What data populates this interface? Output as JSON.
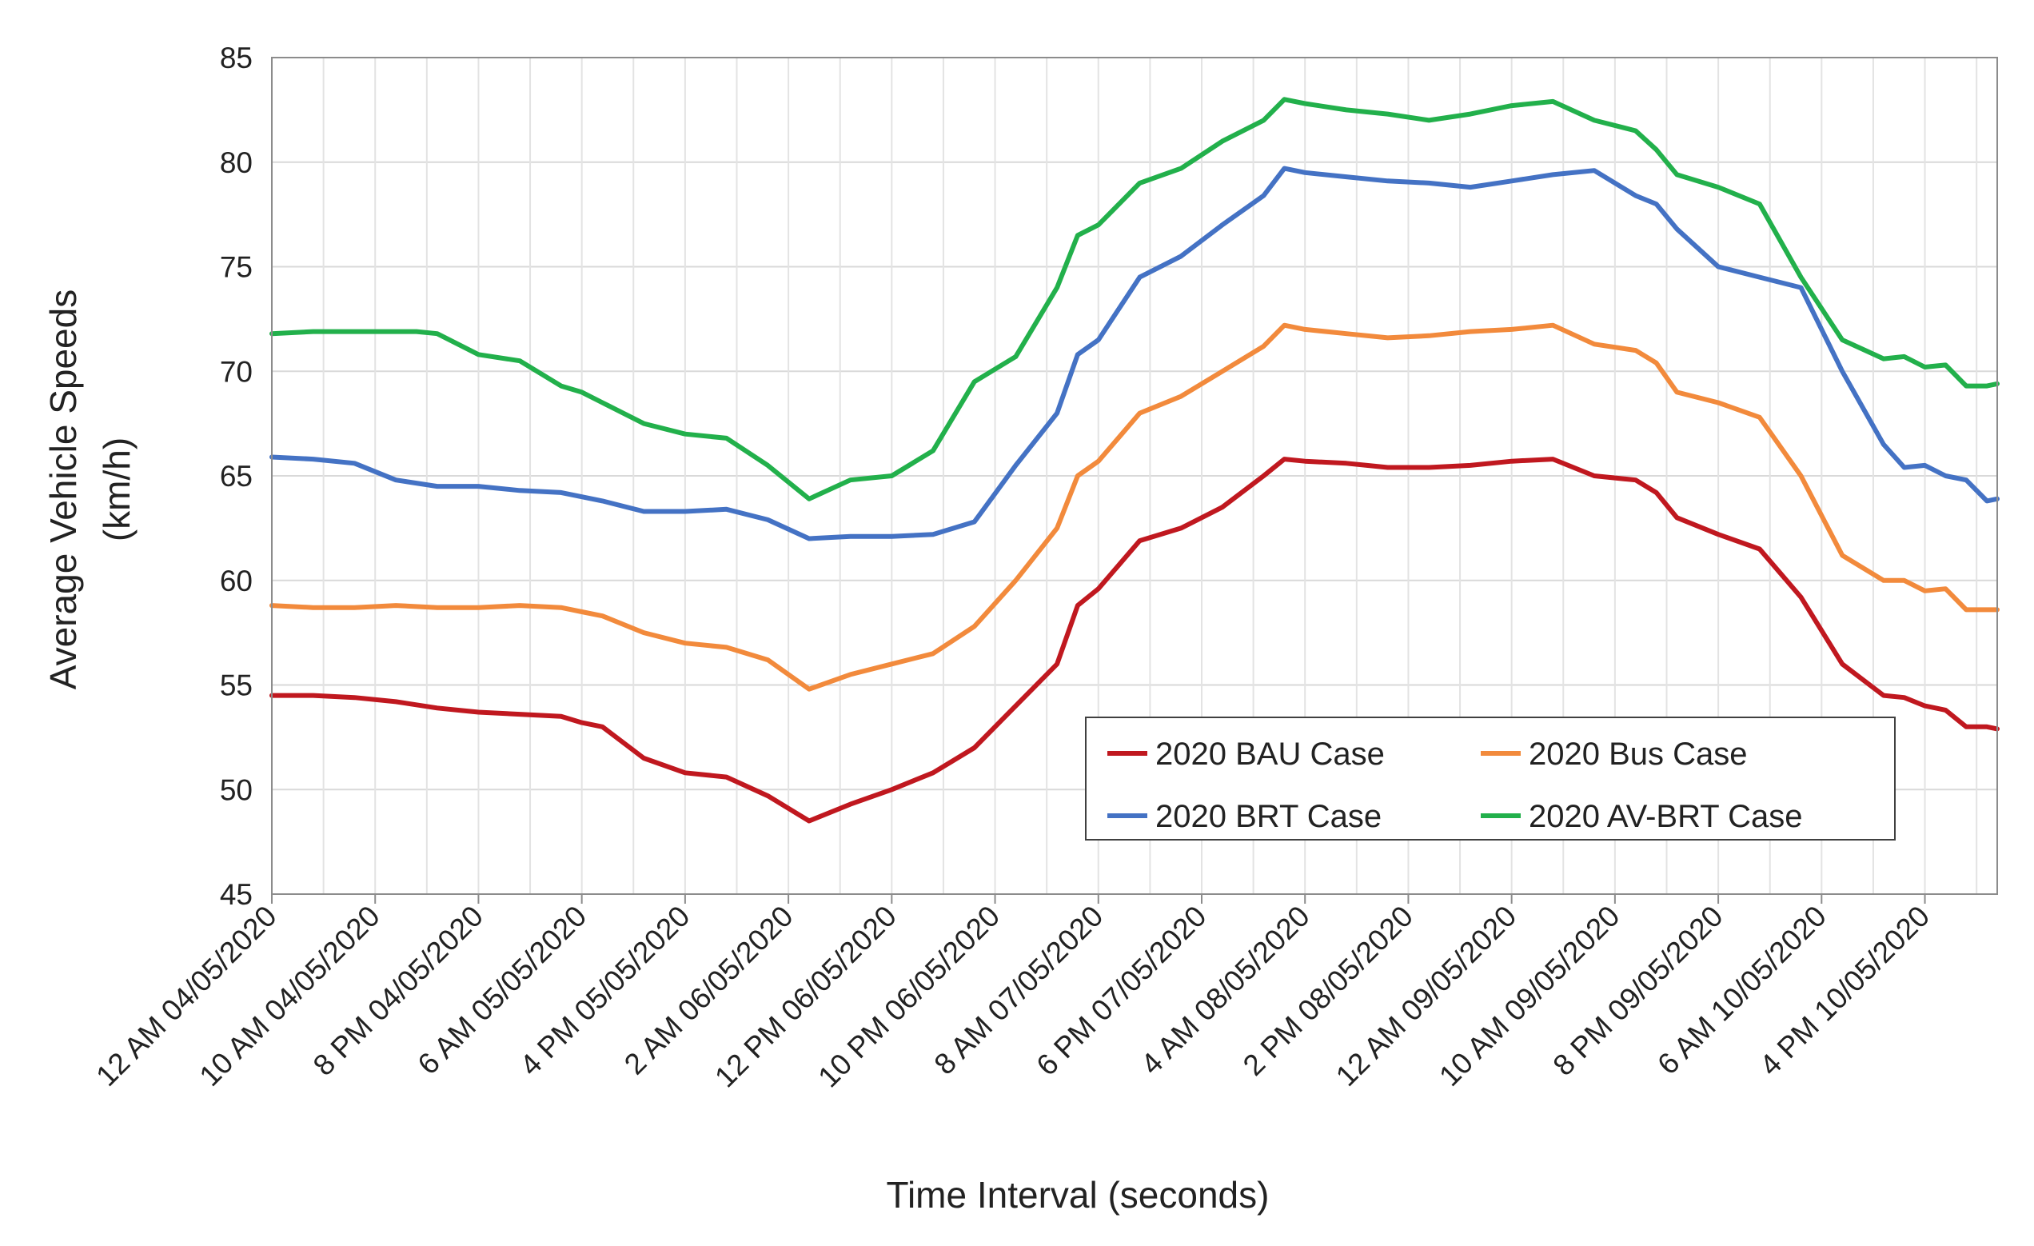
{
  "chart_data": {
    "type": "line",
    "ylabel": "Average Vehicle Speeds",
    "ylabel_unit": "(km/h)",
    "xlabel": "Time Interval (seconds)",
    "ylim": [
      45,
      85
    ],
    "yticks": [
      45,
      50,
      55,
      60,
      65,
      70,
      75,
      80,
      85
    ],
    "x_hours_total": 167,
    "x_tick_hours": [
      0,
      10,
      20,
      30,
      40,
      50,
      60,
      70,
      80,
      90,
      100,
      110,
      120,
      130,
      140,
      150,
      160
    ],
    "x_tick_labels": [
      "12 AM 04/05/2020",
      "10 AM 04/05/2020",
      "8 PM 04/05/2020",
      "6 AM 05/05/2020",
      "4 PM 05/05/2020",
      "2 AM 06/05/2020",
      "12 PM 06/05/2020",
      "10 PM 06/05/2020",
      "8 AM 07/05/2020",
      "6 PM 07/05/2020",
      "4 AM 08/05/2020",
      "2 PM 08/05/2020",
      "12 AM 09/05/2020",
      "10 AM 09/05/2020",
      "8 PM 09/05/2020",
      "6 AM 10/05/2020",
      "4 PM 10/05/2020"
    ],
    "grid": true,
    "legend_position": "lower-right",
    "series": [
      {
        "name": "2020 BAU Case",
        "color": "#c0181f",
        "x": [
          0,
          4,
          8,
          12,
          16,
          20,
          24,
          28,
          30,
          32,
          36,
          40,
          44,
          48,
          52,
          56,
          60,
          64,
          68,
          72,
          76,
          78,
          80,
          84,
          88,
          92,
          96,
          98,
          100,
          104,
          106,
          108,
          112,
          116,
          120,
          124,
          128,
          132,
          134,
          136,
          140,
          144,
          148,
          152,
          156,
          158,
          160,
          162,
          164,
          166,
          167
        ],
        "values": [
          54.5,
          54.5,
          54.4,
          54.2,
          53.9,
          53.7,
          53.6,
          53.5,
          53.2,
          53.0,
          51.5,
          50.8,
          50.6,
          49.7,
          48.5,
          49.3,
          50.0,
          50.8,
          52.0,
          54.0,
          56.0,
          58.8,
          59.6,
          61.9,
          62.5,
          63.5,
          65.0,
          65.8,
          65.7,
          65.6,
          65.5,
          65.4,
          65.4,
          65.5,
          65.7,
          65.8,
          65.0,
          64.8,
          64.2,
          63.0,
          62.2,
          61.5,
          59.2,
          56.0,
          54.5,
          54.4,
          54.0,
          53.8,
          53.0,
          53.0,
          52.9
        ]
      },
      {
        "name": "2020 Bus Case",
        "color": "#f28a3c",
        "x": [
          0,
          4,
          8,
          12,
          16,
          20,
          24,
          28,
          30,
          32,
          36,
          40,
          44,
          48,
          52,
          56,
          60,
          64,
          68,
          72,
          76,
          78,
          80,
          84,
          88,
          92,
          96,
          98,
          100,
          104,
          108,
          112,
          116,
          120,
          124,
          128,
          132,
          134,
          136,
          140,
          144,
          148,
          152,
          156,
          158,
          160,
          162,
          164,
          166,
          167
        ],
        "values": [
          58.8,
          58.7,
          58.7,
          58.8,
          58.7,
          58.7,
          58.8,
          58.7,
          58.5,
          58.3,
          57.5,
          57.0,
          56.8,
          56.2,
          54.8,
          55.5,
          56.0,
          56.5,
          57.8,
          60.0,
          62.5,
          65.0,
          65.7,
          68.0,
          68.8,
          70.0,
          71.2,
          72.2,
          72.0,
          71.8,
          71.6,
          71.7,
          71.9,
          72.0,
          72.2,
          71.3,
          71.0,
          70.4,
          69.0,
          68.5,
          67.8,
          65.0,
          61.2,
          60.0,
          60.0,
          59.5,
          59.6,
          58.6,
          58.6,
          58.6
        ]
      },
      {
        "name": "2020 BRT Case",
        "color": "#4472c4",
        "x": [
          0,
          4,
          8,
          12,
          16,
          20,
          24,
          28,
          30,
          32,
          36,
          40,
          44,
          48,
          52,
          56,
          60,
          64,
          68,
          72,
          76,
          78,
          80,
          84,
          88,
          92,
          96,
          98,
          100,
          104,
          108,
          112,
          116,
          120,
          124,
          128,
          132,
          134,
          136,
          140,
          144,
          148,
          152,
          156,
          158,
          160,
          162,
          164,
          166,
          167
        ],
        "values": [
          65.9,
          65.8,
          65.6,
          64.8,
          64.5,
          64.5,
          64.3,
          64.2,
          64.0,
          63.8,
          63.3,
          63.3,
          63.4,
          62.9,
          62.0,
          62.1,
          62.1,
          62.2,
          62.8,
          65.5,
          68.0,
          70.8,
          71.5,
          74.5,
          75.5,
          77.0,
          78.4,
          79.7,
          79.5,
          79.3,
          79.1,
          79.0,
          78.8,
          79.1,
          79.4,
          79.6,
          78.4,
          78.0,
          76.8,
          75.0,
          74.5,
          74.0,
          70.0,
          66.5,
          65.4,
          65.5,
          65.0,
          64.8,
          63.8,
          63.9
        ]
      },
      {
        "name": "2020 AV-BRT Case",
        "color": "#22b04b",
        "x": [
          0,
          4,
          8,
          12,
          14,
          16,
          20,
          24,
          28,
          30,
          32,
          36,
          40,
          44,
          48,
          52,
          56,
          60,
          64,
          68,
          72,
          76,
          78,
          80,
          84,
          88,
          92,
          96,
          98,
          100,
          104,
          108,
          112,
          116,
          120,
          124,
          128,
          132,
          134,
          136,
          140,
          144,
          148,
          152,
          156,
          158,
          160,
          162,
          164,
          166,
          167
        ],
        "values": [
          71.8,
          71.9,
          71.9,
          71.9,
          71.9,
          71.8,
          70.8,
          70.5,
          69.3,
          69.0,
          68.5,
          67.5,
          67.0,
          66.8,
          65.5,
          63.9,
          64.8,
          65.0,
          66.2,
          69.5,
          70.7,
          74.0,
          76.5,
          77.0,
          79.0,
          79.7,
          81.0,
          82.0,
          83.0,
          82.8,
          82.5,
          82.3,
          82.0,
          82.3,
          82.7,
          82.9,
          82.0,
          81.5,
          80.6,
          79.4,
          78.8,
          78.0,
          74.5,
          71.5,
          70.6,
          70.7,
          70.2,
          70.3,
          69.3,
          69.3,
          69.4
        ]
      }
    ]
  }
}
